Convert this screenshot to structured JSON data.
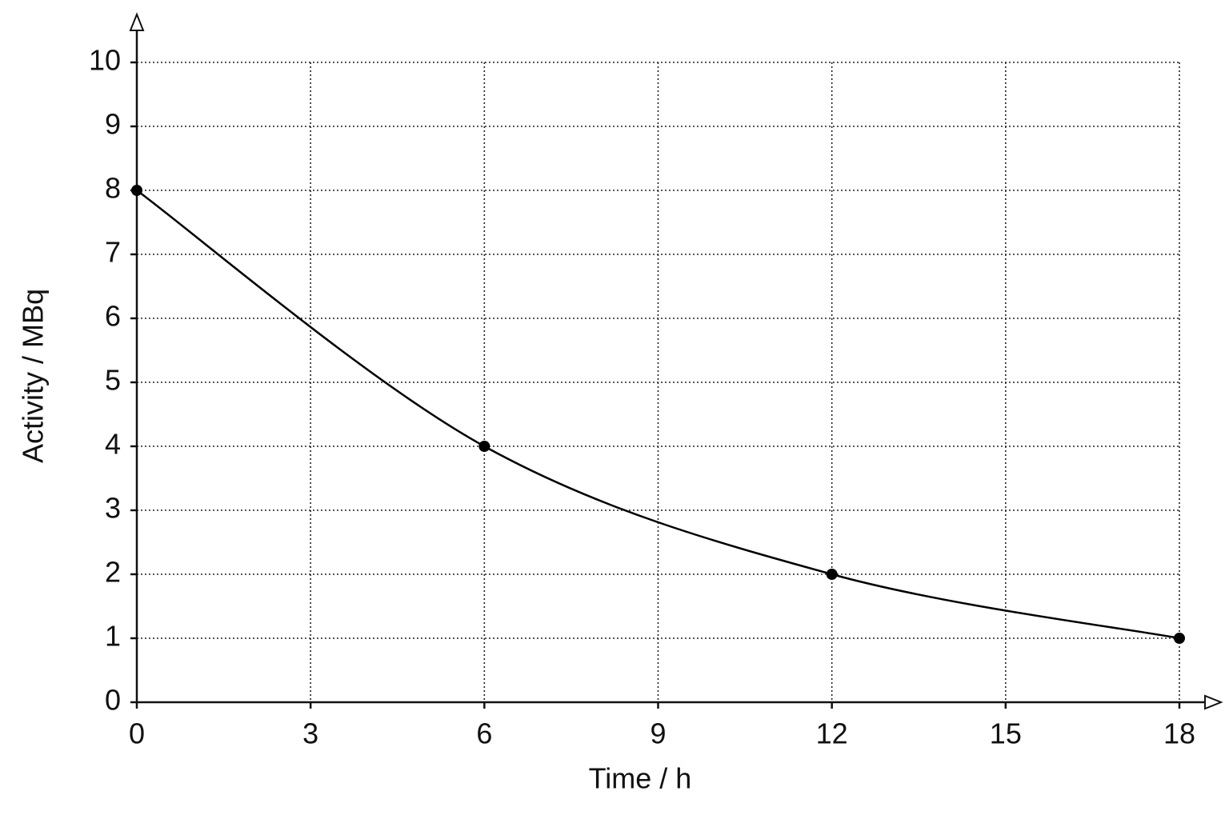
{
  "chart_data": {
    "type": "line",
    "x_label": "Time / h",
    "y_label": "Activity / MBq",
    "x": [
      0,
      6,
      12,
      18
    ],
    "series": [
      {
        "color": "#000000",
        "values": [
          8,
          4,
          2,
          1
        ]
      }
    ],
    "xlim": [
      0,
      18
    ],
    "ylim": [
      0,
      10
    ],
    "xticks": [
      0,
      3,
      6,
      9,
      12,
      15,
      18
    ],
    "yticks": [
      0,
      1,
      2,
      3,
      4,
      5,
      6,
      7,
      8,
      9,
      10
    ],
    "grid": true
  }
}
